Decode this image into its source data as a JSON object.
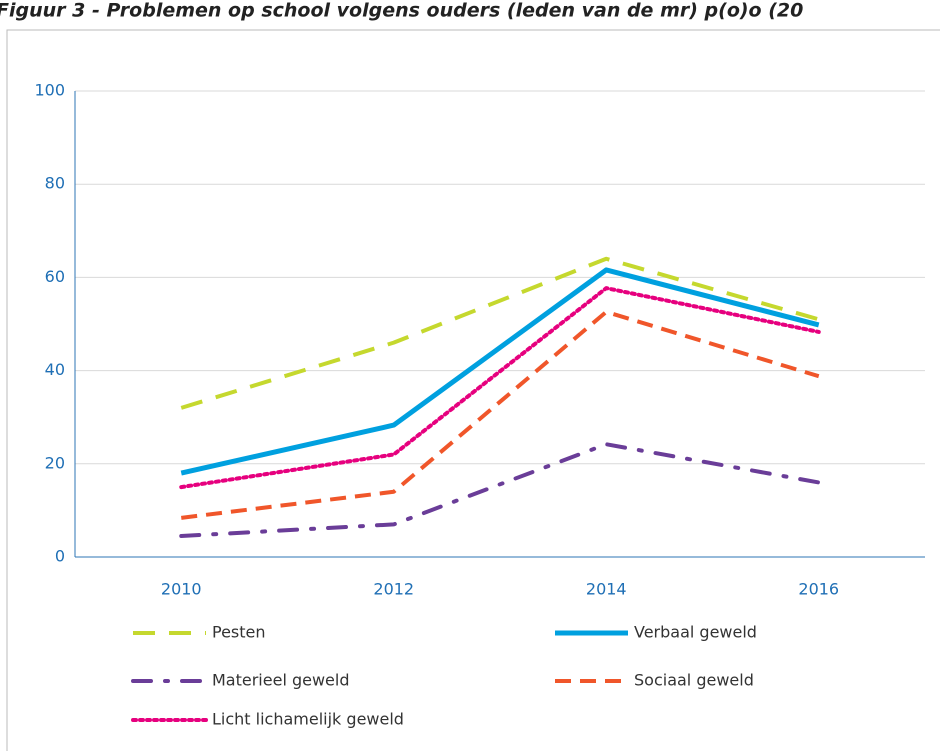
{
  "chart_data": {
    "type": "line",
    "title": "Figuur 3 - Problemen op school volgens ouders (leden van de mr) p(o)o (20",
    "categories": [
      "2010",
      "2012",
      "2014",
      "2016"
    ],
    "series": [
      {
        "name": "Pesten",
        "color": "#c5d82e",
        "values": [
          32,
          46,
          64,
          51
        ]
      },
      {
        "name": "Verbaal geweld",
        "color": "#00a0df",
        "values": [
          18,
          28.3,
          61.6,
          49.8
        ]
      },
      {
        "name": "Materieel geweld",
        "color": "#6a3d98",
        "values": [
          4.5,
          7,
          24.2,
          16
        ]
      },
      {
        "name": "Sociaal geweld",
        "color": "#f0562a",
        "values": [
          8.4,
          14,
          52.6,
          38.8
        ]
      },
      {
        "name": "Licht lichamelijk geweld",
        "color": "#e6007e",
        "values": [
          15,
          22,
          57.7,
          48.3
        ]
      }
    ],
    "ylim": [
      0,
      100
    ],
    "yticks": [
      0,
      20,
      40,
      60,
      80,
      100
    ],
    "grid": true
  }
}
